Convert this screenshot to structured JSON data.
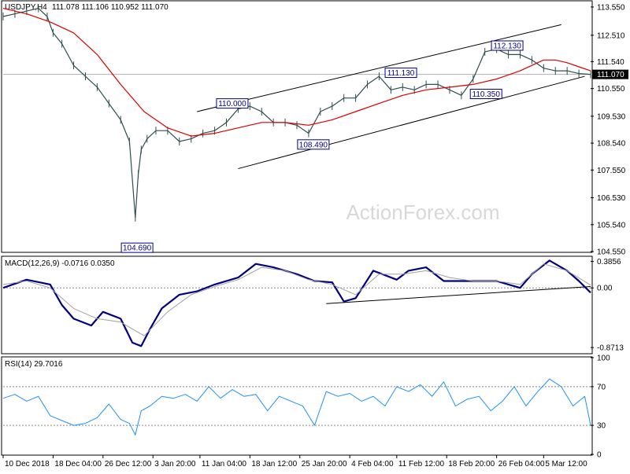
{
  "colors": {
    "candles": "#2f4f4f",
    "ma": "#dc0000",
    "macd": "#000080",
    "signal": "#a0a0a0",
    "rsi": "#1e90ff",
    "frame": "#000000",
    "dash": "#888888",
    "label": "#00008b"
  },
  "watermark": "ActionForex.com",
  "chart_data": [
    {
      "id": "price",
      "type": "line",
      "title": "USDJPY,H4",
      "ohlc": "111.078 111.106 110.952 111.070",
      "ylim": [
        104.55,
        113.75
      ],
      "yticks": [
        "113.550",
        "112.510",
        "111.540",
        "110.550",
        "109.530",
        "108.540",
        "107.550",
        "106.530",
        "105.540",
        "104.550"
      ],
      "ytick_values": [
        113.55,
        112.51,
        111.54,
        110.55,
        109.53,
        108.54,
        107.55,
        106.53,
        105.54,
        104.55
      ],
      "current_price": "111.070",
      "current_value": 111.07,
      "annotations": [
        {
          "text": "104.690",
          "x": 0.228,
          "y": 104.69
        },
        {
          "text": "110.000",
          "x": 0.39,
          "y": 110.0
        },
        {
          "text": "108.490",
          "x": 0.528,
          "y": 108.49
        },
        {
          "text": "111.130",
          "x": 0.677,
          "y": 111.13
        },
        {
          "text": "110.350",
          "x": 0.822,
          "y": 110.35
        },
        {
          "text": "112.130",
          "x": 0.858,
          "y": 112.13
        }
      ],
      "series": [
        {
          "kind": "price",
          "x": [
            0,
            0.02,
            0.04,
            0.06,
            0.075,
            0.085,
            0.1,
            0.12,
            0.14,
            0.16,
            0.18,
            0.2,
            0.215,
            0.225,
            0.23,
            0.235,
            0.245,
            0.26,
            0.28,
            0.3,
            0.32,
            0.34,
            0.36,
            0.38,
            0.4,
            0.42,
            0.44,
            0.46,
            0.48,
            0.5,
            0.52,
            0.54,
            0.56,
            0.58,
            0.6,
            0.62,
            0.64,
            0.66,
            0.68,
            0.7,
            0.72,
            0.74,
            0.76,
            0.78,
            0.8,
            0.82,
            0.84,
            0.86,
            0.88,
            0.9,
            0.92,
            0.94,
            0.96,
            0.98,
            1.0
          ],
          "values": [
            113.2,
            113.3,
            113.4,
            113.5,
            113.2,
            112.6,
            112.2,
            111.4,
            111.0,
            110.6,
            110.0,
            109.4,
            108.6,
            105.8,
            107.4,
            108.3,
            108.7,
            109.0,
            109.0,
            108.6,
            108.7,
            108.9,
            109.0,
            109.3,
            109.8,
            109.9,
            109.7,
            109.3,
            109.3,
            109.2,
            108.9,
            109.7,
            109.9,
            110.2,
            110.2,
            110.7,
            111.0,
            110.5,
            110.6,
            110.5,
            110.7,
            110.7,
            110.5,
            110.3,
            110.9,
            111.9,
            112.0,
            111.8,
            111.8,
            111.6,
            111.3,
            111.2,
            111.2,
            111.1,
            111.07
          ]
        },
        {
          "kind": "moving-average",
          "x": [
            0,
            0.04,
            0.08,
            0.12,
            0.16,
            0.2,
            0.24,
            0.28,
            0.32,
            0.36,
            0.4,
            0.44,
            0.48,
            0.52,
            0.56,
            0.6,
            0.64,
            0.68,
            0.72,
            0.76,
            0.8,
            0.84,
            0.88,
            0.9,
            0.92,
            0.94,
            0.96,
            0.98,
            1.0
          ],
          "values": [
            113.5,
            113.3,
            113.0,
            112.6,
            111.8,
            110.7,
            109.7,
            109.1,
            108.8,
            108.9,
            109.1,
            109.3,
            109.3,
            109.2,
            109.4,
            109.7,
            110.0,
            110.3,
            110.5,
            110.6,
            110.7,
            110.9,
            111.2,
            111.4,
            111.6,
            111.6,
            111.5,
            111.35,
            111.2
          ]
        }
      ],
      "lines": [
        {
          "name": "upper-channel",
          "from": [
            0.33,
            109.7
          ],
          "to": [
            0.95,
            112.9
          ]
        },
        {
          "name": "lower-channel",
          "from": [
            0.4,
            107.6
          ],
          "to": [
            0.99,
            111.0
          ]
        }
      ]
    },
    {
      "id": "macd",
      "type": "line",
      "title": "MACD(12,26,9) -0.0716 0.0350",
      "ylim": [
        -0.95,
        0.45
      ],
      "yticks": [
        "0.3856",
        "0.00",
        "-0.8713"
      ],
      "ytick_values": [
        0.3856,
        0.0,
        -0.8713
      ],
      "series": [
        {
          "kind": "macd",
          "x": [
            0,
            0.04,
            0.08,
            0.1,
            0.12,
            0.15,
            0.17,
            0.2,
            0.22,
            0.235,
            0.25,
            0.27,
            0.3,
            0.33,
            0.36,
            0.4,
            0.43,
            0.46,
            0.5,
            0.53,
            0.56,
            0.58,
            0.6,
            0.63,
            0.67,
            0.69,
            0.72,
            0.75,
            0.78,
            0.81,
            0.84,
            0.86,
            0.88,
            0.9,
            0.93,
            0.96,
            0.98,
            1.0
          ],
          "values": [
            0.0,
            0.12,
            0.05,
            -0.25,
            -0.45,
            -0.55,
            -0.35,
            -0.45,
            -0.8,
            -0.85,
            -0.6,
            -0.3,
            -0.1,
            -0.05,
            0.05,
            0.15,
            0.35,
            0.3,
            0.2,
            0.1,
            0.08,
            -0.2,
            -0.15,
            0.25,
            0.12,
            0.25,
            0.3,
            0.1,
            0.1,
            0.1,
            0.1,
            0.05,
            0.0,
            0.2,
            0.4,
            0.25,
            0.1,
            -0.07
          ]
        },
        {
          "kind": "signal",
          "x": [
            0,
            0.04,
            0.08,
            0.12,
            0.16,
            0.2,
            0.24,
            0.28,
            0.32,
            0.36,
            0.4,
            0.44,
            0.48,
            0.52,
            0.56,
            0.6,
            0.64,
            0.68,
            0.72,
            0.76,
            0.8,
            0.84,
            0.88,
            0.92,
            0.96,
            1.0
          ],
          "values": [
            0.05,
            0.1,
            0.0,
            -0.3,
            -0.45,
            -0.5,
            -0.7,
            -0.35,
            -0.1,
            0.02,
            0.12,
            0.3,
            0.25,
            0.12,
            0.05,
            -0.1,
            0.2,
            0.2,
            0.25,
            0.15,
            0.1,
            0.1,
            0.05,
            0.35,
            0.25,
            0.04
          ]
        }
      ],
      "lines": [
        {
          "name": "macd-trendline",
          "from": [
            0.55,
            -0.23
          ],
          "to": [
            1.0,
            0.02
          ]
        }
      ]
    },
    {
      "id": "rsi",
      "type": "line",
      "title": "RSI(14) 29.7016",
      "ylim": [
        0,
        100
      ],
      "yticks": [
        "100",
        "70",
        "30",
        "0"
      ],
      "ytick_values": [
        100,
        70,
        30,
        0
      ],
      "levels": [
        70,
        30
      ],
      "series": [
        {
          "kind": "rsi",
          "x": [
            0,
            0.02,
            0.04,
            0.06,
            0.08,
            0.1,
            0.12,
            0.14,
            0.16,
            0.18,
            0.2,
            0.215,
            0.225,
            0.235,
            0.25,
            0.27,
            0.29,
            0.31,
            0.33,
            0.35,
            0.37,
            0.39,
            0.41,
            0.43,
            0.45,
            0.47,
            0.49,
            0.51,
            0.53,
            0.55,
            0.57,
            0.59,
            0.61,
            0.63,
            0.65,
            0.67,
            0.69,
            0.71,
            0.73,
            0.75,
            0.77,
            0.79,
            0.81,
            0.83,
            0.85,
            0.87,
            0.89,
            0.91,
            0.93,
            0.95,
            0.97,
            0.99,
            1.0
          ],
          "values": [
            58,
            62,
            55,
            60,
            40,
            35,
            30,
            32,
            38,
            52,
            36,
            32,
            20,
            45,
            50,
            60,
            58,
            62,
            55,
            70,
            58,
            67,
            60,
            62,
            45,
            60,
            55,
            50,
            30,
            65,
            60,
            63,
            55,
            60,
            50,
            70,
            65,
            72,
            60,
            75,
            50,
            57,
            60,
            45,
            55,
            70,
            50,
            65,
            78,
            70,
            50,
            60,
            30
          ]
        }
      ]
    }
  ],
  "x_axis_labels": [
    "10 Dec 2018",
    "18 Dec 04:00",
    "26 Dec 12:00",
    "3 Jan 20:00",
    "11 Jan 04:00",
    "18 Jan 12:00",
    "25 Jan 20:00",
    "4 Feb 04:00",
    "11 Feb 12:00",
    "18 Feb 20:00",
    "26 Feb 04:00",
    "5 Mar 12:00"
  ],
  "x_axis_label_positions": [
    0.0,
    0.085,
    0.17,
    0.255,
    0.335,
    0.42,
    0.505,
    0.59,
    0.67,
    0.755,
    0.84,
    0.92
  ]
}
